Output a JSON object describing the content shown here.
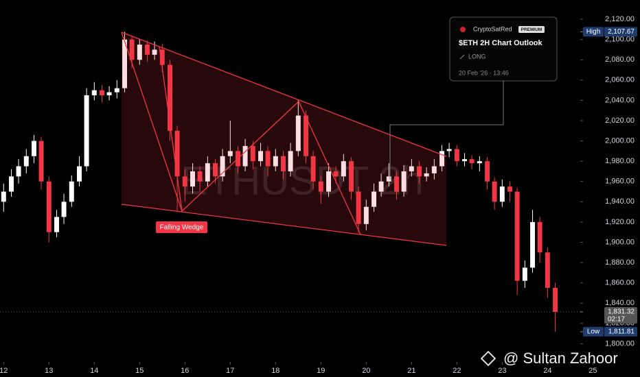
{
  "chart_data": {
    "type": "candlestick",
    "watermark": "ETHUSDT 2h",
    "x": [
      12.0,
      12.17,
      12.33,
      12.5,
      12.67,
      12.83,
      13.0,
      13.17,
      13.33,
      13.5,
      13.67,
      13.83,
      14.0,
      14.17,
      14.33,
      14.5,
      14.67,
      14.83,
      15.0,
      15.17,
      15.33,
      15.5,
      15.67,
      15.83,
      16.0,
      16.17,
      16.33,
      16.5,
      16.67,
      16.83,
      17.0,
      17.17,
      17.33,
      17.5,
      17.67,
      17.83,
      18.0,
      18.17,
      18.33,
      18.5,
      18.67,
      18.83,
      19.0,
      19.17,
      19.33,
      19.5,
      19.67,
      19.83,
      20.0,
      20.17,
      20.33,
      20.5,
      20.67,
      20.83,
      21.0,
      21.17,
      21.33,
      21.5,
      21.67,
      21.83,
      22.0,
      22.17,
      22.33,
      22.5,
      22.67,
      22.83,
      23.0,
      23.17,
      23.33,
      23.5,
      23.67,
      23.83,
      24.0,
      24.17
    ],
    "open": [
      1940,
      1950,
      1965,
      1975,
      1985,
      2000,
      1960,
      1910,
      1925,
      1940,
      1960,
      1975,
      2045,
      2050,
      2045,
      2048,
      2052,
      2100,
      2080,
      2095,
      2085,
      2090,
      2075,
      2010,
      1965,
      1955,
      1970,
      1960,
      1978,
      1965,
      1985,
      1990,
      1975,
      1995,
      1980,
      1990,
      1975,
      1985,
      1970,
      1990,
      2025,
      1985,
      1960,
      1950,
      1970,
      1965,
      1980,
      1950,
      1918,
      1935,
      1950,
      1960,
      1965,
      1950,
      1970,
      1975,
      1965,
      1968,
      1975,
      1990,
      1992,
      1980,
      1982,
      1978,
      1980,
      1960,
      1940,
      1955,
      1950,
      1862,
      1875,
      1920,
      1890,
      1855
    ],
    "high": [
      1958,
      1972,
      1982,
      1992,
      2006,
      2004,
      1965,
      1932,
      1948,
      1966,
      1985,
      2052,
      2058,
      2055,
      2054,
      2060,
      2107.67,
      2104,
      2100,
      2099,
      2098,
      2096,
      2080,
      2015,
      1972,
      1978,
      1975,
      1985,
      1982,
      1992,
      2020,
      1995,
      2002,
      2000,
      1998,
      1995,
      1992,
      1990,
      1998,
      2040,
      2030,
      1990,
      1965,
      1978,
      1975,
      1987,
      1984,
      1955,
      1942,
      1958,
      1968,
      1978,
      1970,
      1976,
      1982,
      1980,
      1974,
      1982,
      1996,
      1998,
      1996,
      1988,
      1986,
      1985,
      1984,
      1964,
      1962,
      1960,
      1954,
      1882,
      1932,
      1925,
      1895,
      1860
    ],
    "low": [
      1930,
      1945,
      1958,
      1968,
      1978,
      1952,
      1900,
      1905,
      1918,
      1935,
      1955,
      1970,
      2040,
      2038,
      2040,
      2042,
      2048,
      2072,
      2075,
      2078,
      2080,
      2068,
      2000,
      1930,
      1940,
      1948,
      1950,
      1955,
      1958,
      1960,
      1978,
      1968,
      1970,
      1972,
      1975,
      1965,
      1970,
      1962,
      1965,
      1985,
      1978,
      1952,
      1938,
      1945,
      1958,
      1960,
      1942,
      1910,
      1912,
      1930,
      1945,
      1955,
      1942,
      1945,
      1965,
      1958,
      1960,
      1962,
      1970,
      1984,
      1975,
      1975,
      1972,
      1970,
      1952,
      1932,
      1935,
      1940,
      1848,
      1855,
      1870,
      1880,
      1845,
      1811.81
    ],
    "close": [
      1950,
      1965,
      1975,
      1985,
      2000,
      1960,
      1910,
      1925,
      1940,
      1960,
      1975,
      2045,
      2050,
      2045,
      2048,
      2052,
      2100,
      2080,
      2095,
      2085,
      2090,
      2075,
      2010,
      1965,
      1955,
      1970,
      1960,
      1978,
      1965,
      1985,
      1990,
      1975,
      1995,
      1980,
      1990,
      1975,
      1985,
      1970,
      1990,
      2025,
      1985,
      1960,
      1950,
      1970,
      1965,
      1980,
      1950,
      1918,
      1935,
      1950,
      1960,
      1965,
      1950,
      1970,
      1975,
      1965,
      1968,
      1975,
      1990,
      1992,
      1980,
      1982,
      1978,
      1980,
      1960,
      1940,
      1955,
      1950,
      1862,
      1875,
      1920,
      1890,
      1855,
      1831.32
    ],
    "up_color": "#ffffff",
    "down_color": "#f23645",
    "xlim": [
      11.92,
      26.04
    ],
    "xticks": [
      12,
      13,
      14,
      15,
      16,
      17,
      18,
      19,
      20,
      21,
      22,
      23,
      24,
      25
    ],
    "ylim": [
      1782,
      2139
    ],
    "yticks": [
      {
        "value": 1800,
        "label": "1,800.00"
      },
      {
        "value": 1820,
        "label": "1,820.00"
      },
      {
        "value": 1840,
        "label": "1,840.00"
      },
      {
        "value": 1860,
        "label": "1,860.00"
      },
      {
        "value": 1880,
        "label": "1,880.00"
      },
      {
        "value": 1900,
        "label": "1,900.00"
      },
      {
        "value": 1920,
        "label": "1,920.00"
      },
      {
        "value": 1940,
        "label": "1,940.00"
      },
      {
        "value": 1960,
        "label": "1,960.00"
      },
      {
        "value": 1980,
        "label": "1,980.00"
      },
      {
        "value": 2000,
        "label": "2,000.00"
      },
      {
        "value": 2020,
        "label": "2,020.00"
      },
      {
        "value": 2040,
        "label": "2,040.00"
      },
      {
        "value": 2060,
        "label": "2,060.00"
      },
      {
        "value": 2080,
        "label": "2,080.00"
      },
      {
        "value": 2100,
        "label": "2,100.00"
      },
      {
        "value": 2120,
        "label": "2,120.00"
      }
    ],
    "high_marker": {
      "name": "High",
      "value": 2107.67,
      "label": "2,107.67"
    },
    "low_marker": {
      "name": "Low",
      "value": 1811.81,
      "label": "1,811.81"
    },
    "last_price": {
      "value": 1831.32,
      "label": "1,831.32",
      "countdown": "02:17"
    },
    "pattern_label": "Falling Wedge",
    "idea_card": {
      "author": "CryptoSatRed",
      "badge": "PREMIUM",
      "title": "$ETH 2H Chart Outlook",
      "direction": "LONG",
      "date": "20 Feb '26 · 13:46"
    },
    "credit": "@ Sultan Zahoor"
  }
}
